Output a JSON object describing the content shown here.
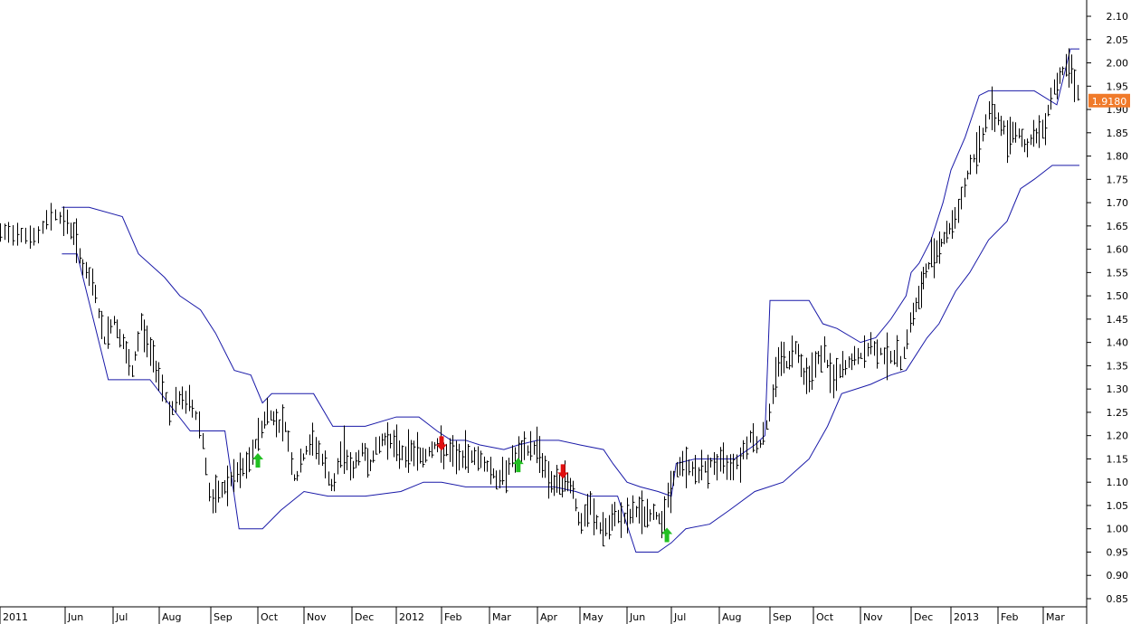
{
  "chart_data": {
    "type": "line",
    "title": "",
    "xlabel": "",
    "ylabel": "",
    "ylim": [
      0.85,
      2.1
    ],
    "y_ticks": [
      "2.10",
      "2.05",
      "2.00",
      "1.95",
      "1.90",
      "1.85",
      "1.80",
      "1.75",
      "1.70",
      "1.65",
      "1.60",
      "1.55",
      "1.50",
      "1.45",
      "1.40",
      "1.35",
      "1.30",
      "1.25",
      "1.20",
      "1.15",
      "1.10",
      "1.05",
      "1.00",
      "0.95",
      "0.90",
      "0.85"
    ],
    "x_months": [
      {
        "label": "2011",
        "x": 0
      },
      {
        "label": "Jun",
        "x": 1
      },
      {
        "label": "Jul",
        "x": 2
      },
      {
        "label": "Aug",
        "x": 3
      },
      {
        "label": "Sep",
        "x": 4
      },
      {
        "label": "Oct",
        "x": 5
      },
      {
        "label": "Nov",
        "x": 6
      },
      {
        "label": "Dec",
        "x": 7
      },
      {
        "label": "2012",
        "x": 8
      },
      {
        "label": "Feb",
        "x": 9
      },
      {
        "label": "Mar",
        "x": 10
      },
      {
        "label": "Apr",
        "x": 11
      },
      {
        "label": "May",
        "x": 12
      },
      {
        "label": "Jun",
        "x": 13
      },
      {
        "label": "Jul",
        "x": 14
      },
      {
        "label": "Aug",
        "x": 15
      },
      {
        "label": "Sep",
        "x": 16
      },
      {
        "label": "Oct",
        "x": 17
      },
      {
        "label": "Nov",
        "x": 18
      },
      {
        "label": "Dec",
        "x": 19
      },
      {
        "label": "2013",
        "x": 20
      },
      {
        "label": "Feb",
        "x": 21
      },
      {
        "label": "Mar",
        "x": 22
      }
    ],
    "last_price_label": "1.9180",
    "last_price": 1.918,
    "colors": {
      "price": "#000000",
      "channel": "#1a1aa8",
      "buy": "#22c022",
      "sell": "#e01010",
      "last_price_bg": "#f07a2a"
    },
    "series": [
      {
        "name": "",
        "role": "upper-channel",
        "x": [
          0.95,
          1.5,
          2.2,
          2.55,
          3.1,
          3.4,
          3.8,
          4.1,
          4.5,
          4.85,
          5.1,
          5.3,
          5.5,
          6.2,
          6.6,
          7.3,
          8.0,
          8.5,
          8.9,
          9.2,
          9.5,
          9.8,
          10.3,
          10.6,
          11.0,
          11.5,
          12.0,
          12.5,
          12.7,
          13.0,
          13.3,
          13.7,
          14.0,
          14.1,
          14.5,
          15.0,
          15.3,
          15.7,
          15.9,
          16.0,
          16.4,
          16.9,
          17.2,
          17.5,
          18.0,
          18.3,
          18.6,
          18.9,
          19.0,
          19.2,
          19.5,
          19.8,
          20.0,
          20.3,
          20.6,
          20.8,
          21.3,
          21.8,
          22.3,
          22.6,
          22.8
        ],
        "values": [
          1.69,
          1.69,
          1.67,
          1.59,
          1.54,
          1.5,
          1.47,
          1.42,
          1.34,
          1.33,
          1.27,
          1.29,
          1.29,
          1.29,
          1.22,
          1.22,
          1.24,
          1.24,
          1.21,
          1.19,
          1.19,
          1.18,
          1.17,
          1.18,
          1.19,
          1.19,
          1.18,
          1.17,
          1.14,
          1.1,
          1.09,
          1.08,
          1.07,
          1.14,
          1.15,
          1.15,
          1.15,
          1.18,
          1.2,
          1.49,
          1.49,
          1.49,
          1.44,
          1.43,
          1.4,
          1.41,
          1.45,
          1.5,
          1.55,
          1.57,
          1.62,
          1.7,
          1.77,
          1.84,
          1.93,
          1.94,
          1.94,
          1.94,
          1.91,
          2.03,
          2.03
        ]
      },
      {
        "name": "",
        "role": "lower-channel",
        "x": [
          0.95,
          1.25,
          1.9,
          2.8,
          3.6,
          4.3,
          4.6,
          5.1,
          5.5,
          6.0,
          6.5,
          7.3,
          8.1,
          8.6,
          9.0,
          9.5,
          10.3,
          10.9,
          11.4,
          11.9,
          12.2,
          12.8,
          13.2,
          13.7,
          14.0,
          14.3,
          14.8,
          15.2,
          15.7,
          16.3,
          16.9,
          17.3,
          17.6,
          18.2,
          18.6,
          18.9,
          19.4,
          19.7,
          20.1,
          20.4,
          20.8,
          21.2,
          21.5,
          21.8,
          22.2,
          22.8
        ],
        "values": [
          1.59,
          1.59,
          1.32,
          1.32,
          1.21,
          1.21,
          1.0,
          1.0,
          1.04,
          1.08,
          1.07,
          1.07,
          1.08,
          1.1,
          1.1,
          1.09,
          1.09,
          1.09,
          1.09,
          1.08,
          1.07,
          1.07,
          0.95,
          0.95,
          0.97,
          1.0,
          1.01,
          1.04,
          1.08,
          1.1,
          1.15,
          1.22,
          1.29,
          1.31,
          1.33,
          1.34,
          1.41,
          1.44,
          1.51,
          1.55,
          1.62,
          1.66,
          1.73,
          1.75,
          1.78,
          1.78
        ]
      },
      {
        "name": "",
        "role": "price",
        "x": [
          0.0,
          0.3,
          0.55,
          0.8,
          1.0,
          1.2,
          1.4,
          1.6,
          1.8,
          2.0,
          2.2,
          2.4,
          2.6,
          2.8,
          3.0,
          3.2,
          3.4,
          3.6,
          3.8,
          4.0,
          4.2,
          4.4,
          4.6,
          4.8,
          5.0,
          5.2,
          5.4,
          5.6,
          5.8,
          6.0,
          6.2,
          6.4,
          6.6,
          6.8,
          7.0,
          7.2,
          7.4,
          7.6,
          7.8,
          8.0,
          8.2,
          8.4,
          8.6,
          8.8,
          9.0,
          9.2,
          9.4,
          9.6,
          9.8,
          10.0,
          10.2,
          10.4,
          10.6,
          10.8,
          11.0,
          11.2,
          11.4,
          11.6,
          11.8,
          12.0,
          12.2,
          12.4,
          12.6,
          12.8,
          13.0,
          13.2,
          13.4,
          13.6,
          13.8,
          14.0,
          14.2,
          14.4,
          14.6,
          14.8,
          15.0,
          15.2,
          15.4,
          15.6,
          15.8,
          16.0,
          16.2,
          16.4,
          16.6,
          16.8,
          17.0,
          17.2,
          17.4,
          17.6,
          17.8,
          18.0,
          18.2,
          18.4,
          18.6,
          18.8,
          19.0,
          19.2,
          19.4,
          19.6,
          19.8,
          20.0,
          20.2,
          20.4,
          20.6,
          20.8,
          21.0,
          21.2,
          21.4,
          21.6,
          21.8,
          22.0,
          22.2,
          22.4,
          22.6,
          22.8
        ],
        "values": [
          1.63,
          1.64,
          1.62,
          1.68,
          1.66,
          1.63,
          1.55,
          1.52,
          1.4,
          1.45,
          1.4,
          1.33,
          1.44,
          1.38,
          1.33,
          1.25,
          1.28,
          1.27,
          1.22,
          1.05,
          1.08,
          1.1,
          1.12,
          1.14,
          1.2,
          1.25,
          1.23,
          1.22,
          1.1,
          1.16,
          1.19,
          1.14,
          1.08,
          1.18,
          1.12,
          1.17,
          1.14,
          1.18,
          1.2,
          1.17,
          1.16,
          1.17,
          1.15,
          1.18,
          1.17,
          1.16,
          1.15,
          1.16,
          1.15,
          1.13,
          1.1,
          1.14,
          1.16,
          1.17,
          1.18,
          1.12,
          1.09,
          1.1,
          1.1,
          1.0,
          1.05,
          1.0,
          1.0,
          1.03,
          1.02,
          1.04,
          1.03,
          1.03,
          1.02,
          1.1,
          1.14,
          1.13,
          1.12,
          1.14,
          1.14,
          1.14,
          1.15,
          1.2,
          1.18,
          1.25,
          1.38,
          1.35,
          1.4,
          1.32,
          1.35,
          1.38,
          1.32,
          1.34,
          1.36,
          1.37,
          1.39,
          1.38,
          1.37,
          1.36,
          1.45,
          1.5,
          1.56,
          1.6,
          1.62,
          1.65,
          1.7,
          1.78,
          1.82,
          1.9,
          1.88,
          1.84,
          1.86,
          1.82,
          1.84,
          1.86,
          1.94,
          1.98,
          2.0,
          1.918
        ]
      }
    ],
    "signals": [
      {
        "type": "buy",
        "x": 5.0,
        "value": 1.145
      },
      {
        "type": "sell",
        "x": 9.0,
        "value": 1.185
      },
      {
        "type": "buy",
        "x": 10.6,
        "value": 1.135
      },
      {
        "type": "sell",
        "x": 11.6,
        "value": 1.125
      },
      {
        "type": "buy",
        "x": 13.9,
        "value": 0.985
      }
    ]
  }
}
